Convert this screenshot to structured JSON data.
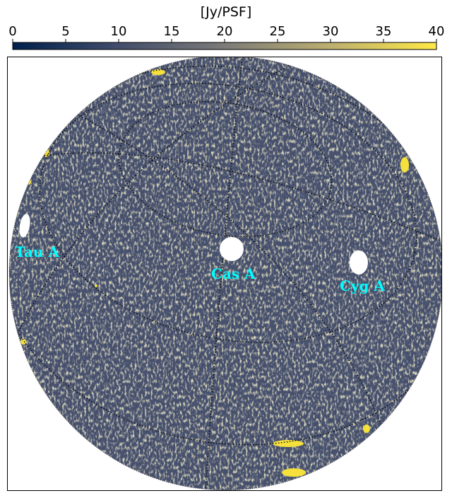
{
  "colorbar": {
    "title": "[Jy/PSF]",
    "ticks": [
      "0",
      "5",
      "10",
      "15",
      "20",
      "25",
      "30",
      "35",
      "40"
    ],
    "range": [
      0,
      40
    ],
    "colormap": [
      "#00204c",
      "#414d6b",
      "#7c7b78",
      "#bcaf6f",
      "#ffe945"
    ]
  },
  "map": {
    "projection": "orthographic all-sky",
    "background_color": "#46506d",
    "grid_style": "dotted",
    "sources": [
      {
        "name": "Tau A",
        "label": "Tau A"
      },
      {
        "name": "Cas A",
        "label": "Cas A"
      },
      {
        "name": "Cyg A",
        "label": "Cyg A"
      }
    ]
  }
}
